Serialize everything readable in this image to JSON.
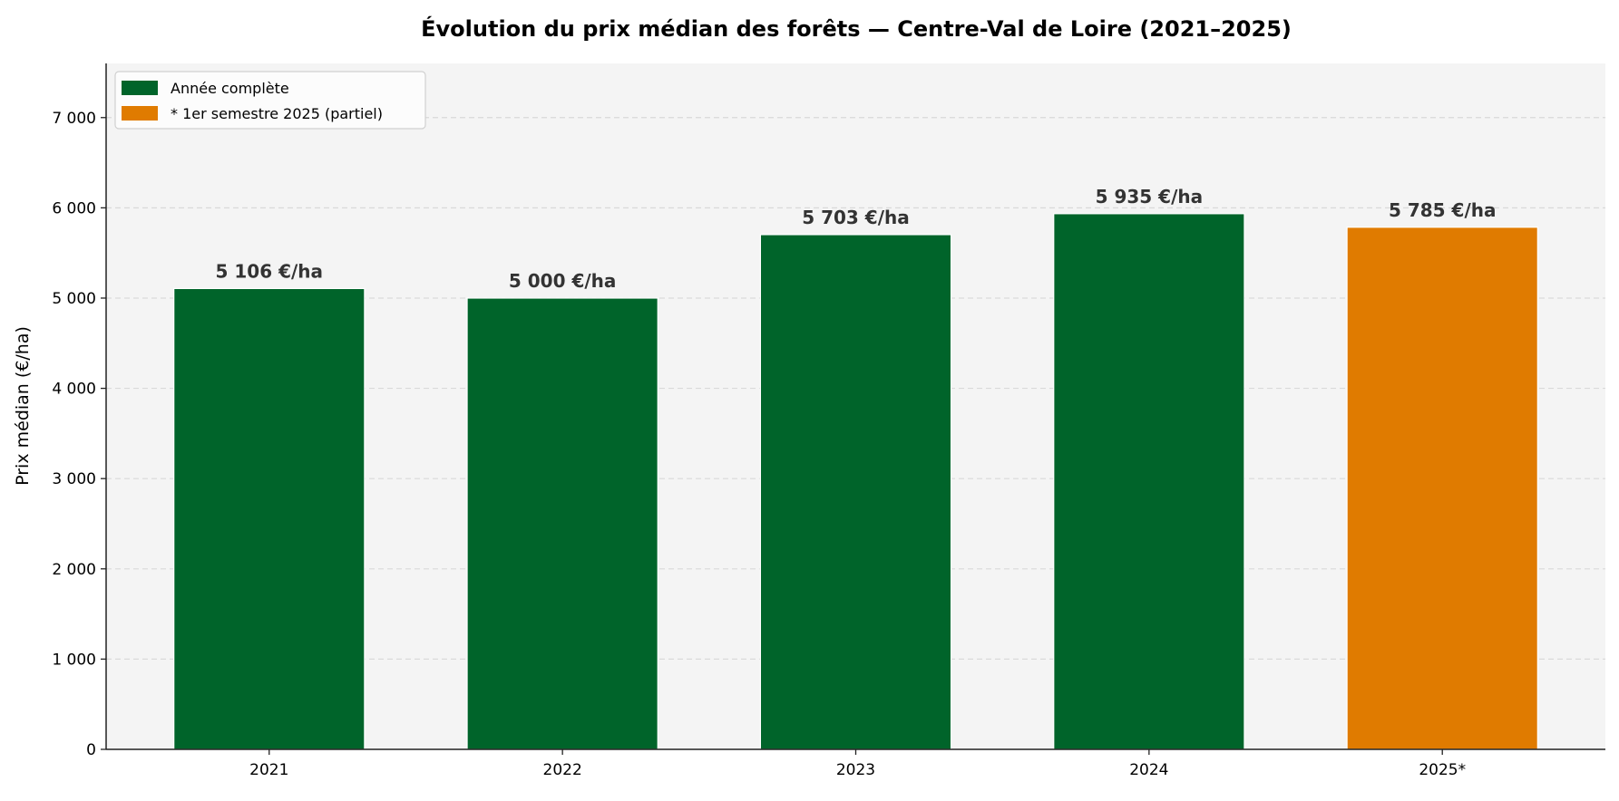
{
  "chart_data": {
    "type": "bar",
    "title": "Évolution du prix médian des forêts — Centre-Val de Loire (2021–2025)",
    "xlabel": "",
    "ylabel": "Prix médian (€/ha)",
    "categories": [
      "2021",
      "2022",
      "2023",
      "2024",
      "2025*"
    ],
    "values": [
      5106,
      5000,
      5703,
      5935,
      5785
    ],
    "data_labels": [
      "5 106 €/ha",
      "5 000 €/ha",
      "5 703 €/ha",
      "5 935 €/ha",
      "5 785 €/ha"
    ],
    "bar_series": [
      "Année complète",
      "Année complète",
      "Année complète",
      "Année complète",
      "* 1er semestre 2025 (partiel)"
    ],
    "ylim": [
      0,
      7600
    ],
    "yticks": [
      0,
      1000,
      2000,
      3000,
      4000,
      5000,
      6000,
      7000
    ],
    "ytick_labels": [
      "0",
      "1 000",
      "2 000",
      "3 000",
      "4 000",
      "5 000",
      "6 000",
      "7 000"
    ],
    "grid": "y dashed",
    "legend": {
      "placement": "upper-left",
      "entries": [
        {
          "label": "Année complète",
          "color": "#00642a"
        },
        {
          "label": "* 1er semestre 2025 (partiel)",
          "color": "#e07b00"
        }
      ]
    },
    "colors": {
      "complete": "#00642a",
      "partial": "#e07b00",
      "plot_background": "#f4f4f4"
    }
  }
}
